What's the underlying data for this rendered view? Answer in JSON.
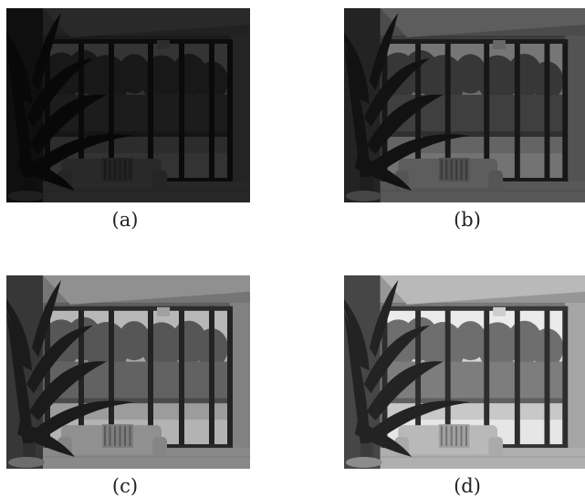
{
  "figure": {
    "panels": [
      {
        "id": "a",
        "caption": "(a)",
        "exposure": 0.22
      },
      {
        "id": "b",
        "caption": "(b)",
        "exposure": 0.5
      },
      {
        "id": "c",
        "caption": "(c)",
        "exposure": 0.78
      },
      {
        "id": "d",
        "caption": "(d)",
        "exposure": 1.0
      }
    ]
  }
}
